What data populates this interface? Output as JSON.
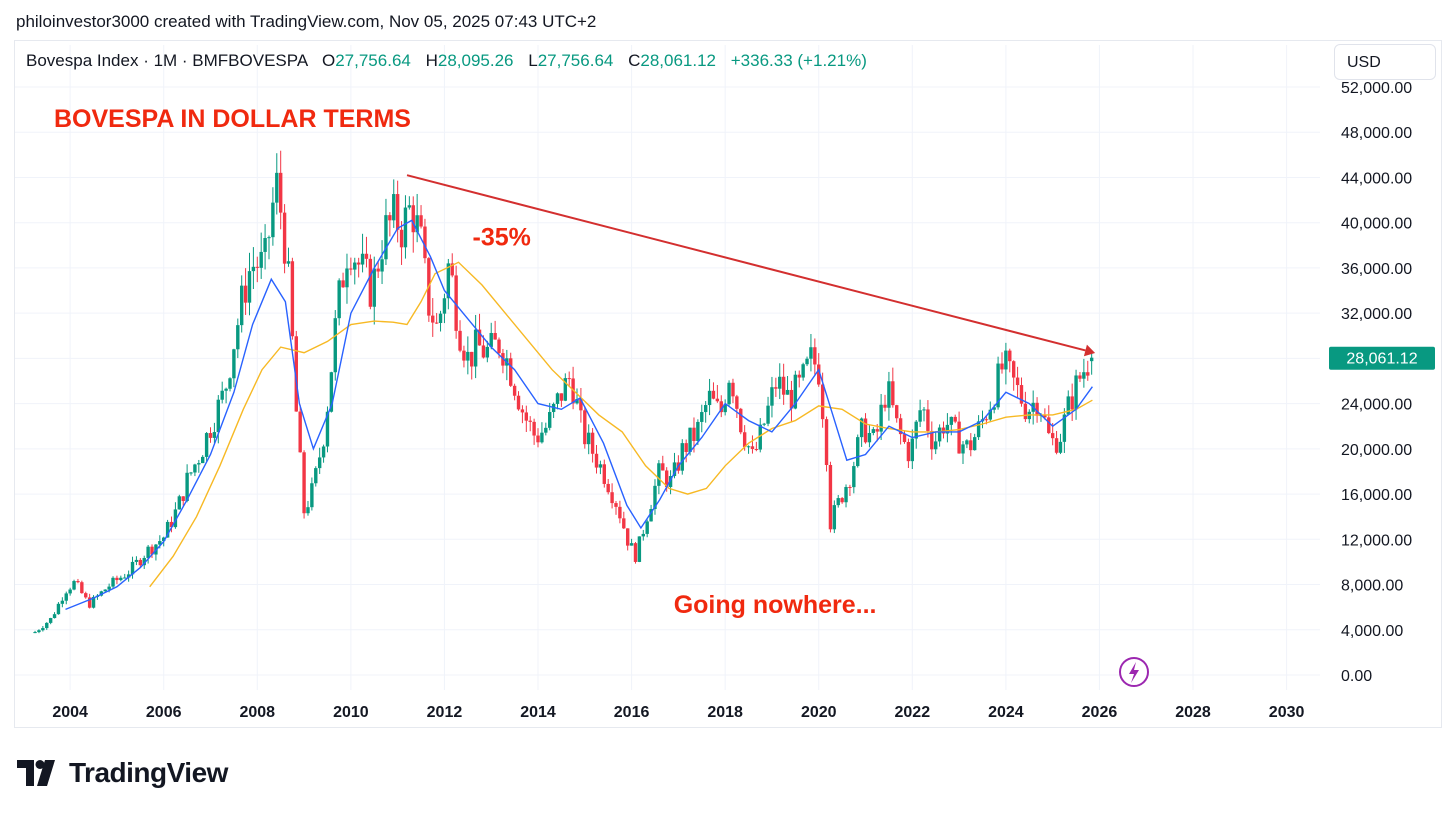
{
  "attribution": "philoinvestor3000 created with TradingView.com, Nov 05, 2025 07:43 UTC+2",
  "legend": {
    "symbol": "Bovespa Index · 1M · BMFBOVESPA",
    "o_label": "O",
    "o_value": "27,756.64",
    "h_label": "H",
    "h_value": "28,095.26",
    "l_label": "L",
    "l_value": "27,756.64",
    "c_label": "C",
    "c_value": "28,061.12",
    "change": "+336.33 (+1.21%)"
  },
  "currency_button": "USD",
  "brand": "TradingView",
  "colors": {
    "up": "#089981",
    "down": "#f23645",
    "ma_fast": "#2962ff",
    "ma_slow": "#f7b924",
    "annotation": "#f0290f",
    "arrow": "#d32f2f",
    "grid": "#f0f3fa"
  },
  "chart_data": {
    "type": "candlestick",
    "title": "BOVESPA IN DOLLAR TERMS",
    "interval": "1M",
    "x_ticks": [
      "2004",
      "2006",
      "2008",
      "2010",
      "2012",
      "2014",
      "2016",
      "2018",
      "2020",
      "2022",
      "2024",
      "2026",
      "2028",
      "2030"
    ],
    "y_ticks": [
      "52,000.00",
      "48,000.00",
      "44,000.00",
      "40,000.00",
      "36,000.00",
      "32,000.00",
      "28,000.00",
      "24,000.00",
      "20,000.00",
      "16,000.00",
      "12,000.00",
      "8,000.00",
      "4,000.00",
      "0.00"
    ],
    "ylim": [
      0,
      52000
    ],
    "xlim": [
      2002.8,
      2030.5
    ],
    "last_price_label": "28,061.12",
    "last_price": 28061.12,
    "annotations": [
      {
        "text": "-35%",
        "x": 2012.6,
        "y": 38000
      },
      {
        "text": "Going nowhere...",
        "x": 2016.9,
        "y": 5500
      }
    ],
    "trend_arrow": {
      "from": [
        2011.2,
        44200
      ],
      "to": [
        2025.7,
        28700
      ]
    },
    "price_path": [
      [
        2003.25,
        3800
      ],
      [
        2003.6,
        5000
      ],
      [
        2003.9,
        7500
      ],
      [
        2004.1,
        8200
      ],
      [
        2004.4,
        6200
      ],
      [
        2004.8,
        7800
      ],
      [
        2005.3,
        9300
      ],
      [
        2005.6,
        10800
      ],
      [
        2006.0,
        12200
      ],
      [
        2006.3,
        14800
      ],
      [
        2006.5,
        17200
      ],
      [
        2006.8,
        19800
      ],
      [
        2007.0,
        22000
      ],
      [
        2007.3,
        25000
      ],
      [
        2007.5,
        29500
      ],
      [
        2007.8,
        35500
      ],
      [
        2007.95,
        36500
      ],
      [
        2008.15,
        36000
      ],
      [
        2008.4,
        43500
      ],
      [
        2008.55,
        40000
      ],
      [
        2008.7,
        33000
      ],
      [
        2008.85,
        22000
      ],
      [
        2009.0,
        14500
      ],
      [
        2009.2,
        16500
      ],
      [
        2009.45,
        22000
      ],
      [
        2009.7,
        32000
      ],
      [
        2009.95,
        38500
      ],
      [
        2010.2,
        36000
      ],
      [
        2010.45,
        34000
      ],
      [
        2010.7,
        39000
      ],
      [
        2010.95,
        40500
      ],
      [
        2011.1,
        39500
      ],
      [
        2011.3,
        41500
      ],
      [
        2011.5,
        38000
      ],
      [
        2011.65,
        33000
      ],
      [
        2011.85,
        30500
      ],
      [
        2012.1,
        36500
      ],
      [
        2012.3,
        31000
      ],
      [
        2012.5,
        28000
      ],
      [
        2012.7,
        29000
      ],
      [
        2012.95,
        28500
      ],
      [
        2013.2,
        29500
      ],
      [
        2013.45,
        26500
      ],
      [
        2013.7,
        23000
      ],
      [
        2013.95,
        21000
      ],
      [
        2014.2,
        22000
      ],
      [
        2014.45,
        24500
      ],
      [
        2014.7,
        26500
      ],
      [
        2014.95,
        21500
      ],
      [
        2015.2,
        19500
      ],
      [
        2015.45,
        17500
      ],
      [
        2015.7,
        15000
      ],
      [
        2015.95,
        11500
      ],
      [
        2016.1,
        10500
      ],
      [
        2016.35,
        14500
      ],
      [
        2016.6,
        18000
      ],
      [
        2016.85,
        17000
      ],
      [
        2017.1,
        20000
      ],
      [
        2017.4,
        21500
      ],
      [
        2017.65,
        24500
      ],
      [
        2017.9,
        23000
      ],
      [
        2018.1,
        27000
      ],
      [
        2018.35,
        22000
      ],
      [
        2018.6,
        19000
      ],
      [
        2018.85,
        22500
      ],
      [
        2019.1,
        26000
      ],
      [
        2019.35,
        24500
      ],
      [
        2019.6,
        25500
      ],
      [
        2019.85,
        28000
      ],
      [
        2020.0,
        27000
      ],
      [
        2020.15,
        21000
      ],
      [
        2020.25,
        13500
      ],
      [
        2020.45,
        15500
      ],
      [
        2020.7,
        18000
      ],
      [
        2020.95,
        22000
      ],
      [
        2021.2,
        20500
      ],
      [
        2021.45,
        25500
      ],
      [
        2021.7,
        21500
      ],
      [
        2021.95,
        19500
      ],
      [
        2022.2,
        24000
      ],
      [
        2022.45,
        20500
      ],
      [
        2022.7,
        22500
      ],
      [
        2022.95,
        21000
      ],
      [
        2023.2,
        20000
      ],
      [
        2023.45,
        22000
      ],
      [
        2023.7,
        24500
      ],
      [
        2023.95,
        27500
      ],
      [
        2024.2,
        25500
      ],
      [
        2024.45,
        23500
      ],
      [
        2024.7,
        24500
      ],
      [
        2024.95,
        20500
      ],
      [
        2025.15,
        21000
      ],
      [
        2025.4,
        24500
      ],
      [
        2025.6,
        26500
      ],
      [
        2025.8,
        28061.12
      ]
    ],
    "ma_fast_path": [
      [
        2003.9,
        5800
      ],
      [
        2004.5,
        6800
      ],
      [
        2005.0,
        7800
      ],
      [
        2005.5,
        9500
      ],
      [
        2006.0,
        11800
      ],
      [
        2006.5,
        15500
      ],
      [
        2007.0,
        19500
      ],
      [
        2007.5,
        25000
      ],
      [
        2007.9,
        31000
      ],
      [
        2008.3,
        35000
      ],
      [
        2008.6,
        33000
      ],
      [
        2008.9,
        24000
      ],
      [
        2009.2,
        20000
      ],
      [
        2009.6,
        24000
      ],
      [
        2010.0,
        32000
      ],
      [
        2010.5,
        36000
      ],
      [
        2011.0,
        39500
      ],
      [
        2011.3,
        40200
      ],
      [
        2011.7,
        37000
      ],
      [
        2012.0,
        34000
      ],
      [
        2012.5,
        31500
      ],
      [
        2013.0,
        29000
      ],
      [
        2013.5,
        27000
      ],
      [
        2014.0,
        24000
      ],
      [
        2014.5,
        23500
      ],
      [
        2014.9,
        24500
      ],
      [
        2015.4,
        20500
      ],
      [
        2015.9,
        15000
      ],
      [
        2016.2,
        13000
      ],
      [
        2016.6,
        15500
      ],
      [
        2017.0,
        18500
      ],
      [
        2017.5,
        21000
      ],
      [
        2018.0,
        24000
      ],
      [
        2018.5,
        22500
      ],
      [
        2019.0,
        21500
      ],
      [
        2019.5,
        24000
      ],
      [
        2020.0,
        27000
      ],
      [
        2020.3,
        23000
      ],
      [
        2020.6,
        19000
      ],
      [
        2021.0,
        19500
      ],
      [
        2021.5,
        22000
      ],
      [
        2022.0,
        21000
      ],
      [
        2022.5,
        21500
      ],
      [
        2023.0,
        21500
      ],
      [
        2023.5,
        22500
      ],
      [
        2024.0,
        25000
      ],
      [
        2024.5,
        24000
      ],
      [
        2025.0,
        22000
      ],
      [
        2025.5,
        23500
      ],
      [
        2025.85,
        25500
      ]
    ],
    "ma_slow_path": [
      [
        2005.7,
        7800
      ],
      [
        2006.2,
        10500
      ],
      [
        2006.7,
        14000
      ],
      [
        2007.2,
        18500
      ],
      [
        2007.7,
        23500
      ],
      [
        2008.1,
        27000
      ],
      [
        2008.5,
        29000
      ],
      [
        2009.0,
        28500
      ],
      [
        2009.5,
        29500
      ],
      [
        2010.0,
        31000
      ],
      [
        2010.5,
        31300
      ],
      [
        2010.9,
        31200
      ],
      [
        2011.2,
        31000
      ],
      [
        2011.5,
        33000
      ],
      [
        2011.8,
        35500
      ],
      [
        2012.3,
        36500
      ],
      [
        2012.8,
        34500
      ],
      [
        2013.3,
        32000
      ],
      [
        2013.8,
        29500
      ],
      [
        2014.3,
        27000
      ],
      [
        2014.8,
        25000
      ],
      [
        2015.3,
        23000
      ],
      [
        2015.8,
        21500
      ],
      [
        2016.3,
        18500
      ],
      [
        2016.8,
        16500
      ],
      [
        2017.2,
        16000
      ],
      [
        2017.6,
        16500
      ],
      [
        2018.0,
        18500
      ],
      [
        2018.5,
        20500
      ],
      [
        2019.0,
        21800
      ],
      [
        2019.5,
        22500
      ],
      [
        2020.0,
        23800
      ],
      [
        2020.5,
        23500
      ],
      [
        2021.0,
        22200
      ],
      [
        2021.5,
        21800
      ],
      [
        2022.0,
        21500
      ],
      [
        2022.5,
        21500
      ],
      [
        2023.0,
        21700
      ],
      [
        2023.5,
        22200
      ],
      [
        2024.0,
        22800
      ],
      [
        2024.5,
        23000
      ],
      [
        2025.0,
        23000
      ],
      [
        2025.5,
        23500
      ],
      [
        2025.85,
        24300
      ]
    ]
  }
}
